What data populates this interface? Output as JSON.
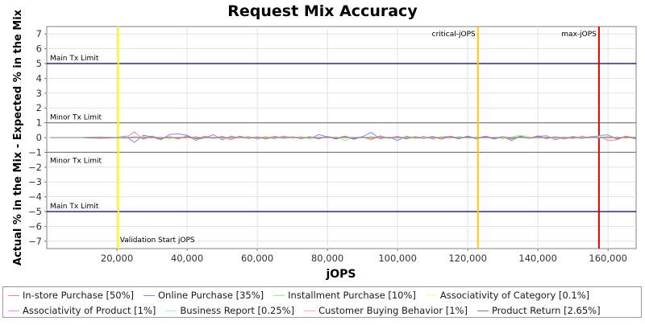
{
  "chart_data": {
    "type": "line",
    "title": "Request Mix Accuracy",
    "xlabel": "jOPS",
    "ylabel": "Actual % in the Mix - Expected % in the Mix",
    "xlim": [
      0,
      168000
    ],
    "ylim": [
      -7.5,
      7.5
    ],
    "x_ticks": [
      20000,
      40000,
      60000,
      80000,
      100000,
      120000,
      140000,
      160000
    ],
    "x_tick_labels": [
      "20,000",
      "40,000",
      "60,000",
      "80,000",
      "100,000",
      "120,000",
      "140,000",
      "160,000"
    ],
    "y_ticks": [
      -7,
      -6,
      -5,
      -4,
      -3,
      -2,
      -1,
      0,
      1,
      2,
      3,
      4,
      5,
      6,
      7
    ],
    "y_tick_labels": [
      "−7",
      "−6",
      "−5",
      "−4",
      "−3",
      "−2",
      "−1",
      "0",
      "1",
      "2",
      "3",
      "4",
      "5",
      "6",
      "7"
    ],
    "grid": true,
    "horizontal_lines": [
      {
        "label": "Main Tx Limit",
        "y": 5,
        "color": "#000066",
        "label_position": "above"
      },
      {
        "label": "Minor Tx Limit",
        "y": 1,
        "color": "#808080",
        "label_position": "above"
      },
      {
        "label": "Minor Tx Limit",
        "y": -1,
        "color": "#808080",
        "label_position": "below"
      },
      {
        "label": "Main Tx Limit",
        "y": -5,
        "color": "#000066",
        "label_position": "above"
      }
    ],
    "vertical_lines": [
      {
        "label": "Validation Start jOPS",
        "x": 20400,
        "color": "#ffff00",
        "label_position": "bottom-right"
      },
      {
        "label": "critical-jOPS",
        "x": 122900,
        "color": "#ffc800",
        "label_position": "top-left"
      },
      {
        "label": "max-jOPS",
        "x": 157400,
        "color": "#dd0000",
        "label_position": "top-left"
      }
    ],
    "x": [
      1000,
      5000,
      10000,
      15000,
      20000,
      22500,
      25000,
      27500,
      30000,
      32500,
      35000,
      37500,
      40000,
      42500,
      45000,
      47500,
      50000,
      52500,
      55000,
      57500,
      60000,
      62500,
      65000,
      67500,
      70000,
      72500,
      75000,
      77500,
      80000,
      82500,
      85000,
      87500,
      90000,
      92500,
      95000,
      97500,
      100000,
      102500,
      105000,
      107500,
      110000,
      112500,
      115000,
      117500,
      120000,
      122500,
      125000,
      127500,
      130000,
      132500,
      135000,
      137500,
      140000,
      142500,
      145000,
      147500,
      150000,
      152500,
      155000,
      157500,
      160000,
      162500,
      165000,
      168000
    ],
    "series": [
      {
        "name": "In-store Purchase [50%]",
        "color": "#ff8080",
        "values": [
          0,
          0,
          0,
          0.05,
          0,
          0,
          0.38,
          -0.12,
          0.1,
          -0.08,
          0.05,
          -0.1,
          0.12,
          -0.2,
          0.1,
          -0.05,
          0.08,
          -0.15,
          0.1,
          -0.06,
          0.05,
          -0.1,
          0.08,
          -0.05,
          0.04,
          -0.08,
          0.06,
          -0.1,
          0.08,
          -0.06,
          0.1,
          -0.08,
          0.05,
          -0.15,
          0.12,
          -0.05,
          0.08,
          -0.1,
          0.06,
          -0.05,
          0.08,
          -0.12,
          0.1,
          -0.06,
          0.05,
          -0.08,
          0.1,
          -0.05,
          0.06,
          -0.1,
          0.08,
          -0.05,
          0.12,
          -0.08,
          0.05,
          -0.1,
          0.08,
          -0.05,
          0.06,
          0.1,
          -0.2,
          -0.15,
          0.1,
          -0.05
        ]
      },
      {
        "name": "Online Purchase [35%]",
        "color": "#8080ff",
        "values": [
          0,
          0,
          0,
          -0.05,
          0,
          0.1,
          -0.32,
          0.15,
          0.05,
          -0.15,
          0.2,
          0.25,
          0.15,
          -0.1,
          -0.05,
          0.2,
          -0.15,
          0.1,
          -0.05,
          0.08,
          -0.1,
          0.05,
          -0.08,
          0.1,
          -0.05,
          0.06,
          -0.1,
          0.2,
          0.05,
          -0.1,
          0.08,
          -0.12,
          0.06,
          0.35,
          -0.1,
          0.05,
          -0.2,
          0.1,
          -0.05,
          0.08,
          -0.1,
          0.06,
          0.05,
          -0.08,
          0.1,
          -0.05,
          0.08,
          -0.1,
          0.05,
          -0.2,
          0.1,
          -0.05,
          0.08,
          0.12,
          -0.15,
          0.05,
          -0.08,
          0.1,
          -0.05,
          0.15,
          0.18,
          -0.1,
          0.05,
          -0.1
        ]
      },
      {
        "name": "Installment Purchase [10%]",
        "color": "#80ff80",
        "values": [
          0,
          0,
          0,
          0,
          0,
          0.05,
          -0.05,
          0.08,
          -0.05,
          0.05,
          -0.08,
          0.05,
          -0.05,
          0.08,
          -0.05,
          0.05,
          -0.08,
          0.05,
          -0.05,
          0.06,
          -0.05,
          0.08,
          -0.05,
          0.05,
          -0.06,
          0.05,
          -0.08,
          0.05,
          -0.05,
          0.06,
          -0.2,
          0.05,
          -0.05,
          0.08,
          -0.05,
          0.05,
          -0.06,
          0.05,
          -0.08,
          0.05,
          -0.05,
          0.06,
          -0.05,
          0.08,
          -0.05,
          0.05,
          -0.06,
          0.05,
          -0.08,
          0.05,
          0.15,
          0.05,
          -0.06,
          0.05,
          -0.08,
          0.05,
          -0.05,
          0.06,
          -0.05,
          0.08,
          -0.05,
          0.05,
          -0.06,
          0.05
        ]
      },
      {
        "name": "Associativity of Category [0.1%]",
        "color": "#ffff80",
        "values": [
          0,
          0,
          0,
          0,
          0,
          0,
          0,
          0,
          0,
          0,
          0,
          0,
          0,
          0,
          0,
          0,
          0,
          0,
          0,
          0,
          0,
          0,
          0,
          0,
          0,
          0,
          0,
          0,
          0,
          0,
          0,
          0,
          0,
          0,
          0,
          0,
          0,
          0,
          0,
          0,
          0,
          0,
          0,
          0,
          0,
          0,
          0,
          0,
          0,
          0,
          0,
          0,
          0,
          0,
          0,
          0,
          0,
          0,
          0,
          0,
          0,
          0,
          0,
          0
        ]
      },
      {
        "name": "Associativity of Product [1%]",
        "color": "#ff80ff",
        "values": [
          0,
          0,
          0,
          0.02,
          0,
          0.03,
          -0.03,
          0.04,
          -0.02,
          0.03,
          -0.04,
          0.02,
          -0.03,
          0.04,
          -0.02,
          0.03,
          -0.04,
          0.02,
          -0.03,
          0.03,
          -0.02,
          0.04,
          -0.03,
          0.02,
          -0.04,
          0.03,
          -0.02,
          0.04,
          -0.03,
          0.02,
          -0.04,
          0.03,
          -0.02,
          0.04,
          -0.03,
          0.02,
          -0.04,
          0.03,
          -0.02,
          0.04,
          -0.03,
          0.02,
          -0.04,
          0.03,
          -0.02,
          0.04,
          -0.03,
          0.02,
          -0.04,
          0.03,
          -0.02,
          0.04,
          -0.03,
          0.02,
          -0.04,
          0.03,
          -0.02,
          0.04,
          -0.03,
          0.02,
          -0.04,
          0.03,
          -0.02,
          0
        ]
      },
      {
        "name": "Business Report [0.25%]",
        "color": "#80ffff",
        "values": [
          0,
          0,
          0,
          0,
          0,
          0.01,
          -0.01,
          0.02,
          -0.01,
          0.01,
          -0.02,
          0.01,
          -0.01,
          0.02,
          -0.01,
          0.01,
          -0.02,
          0.01,
          -0.01,
          0.02,
          -0.01,
          0.01,
          -0.02,
          0.01,
          -0.01,
          0.02,
          -0.01,
          0.01,
          -0.02,
          0.01,
          -0.01,
          0.02,
          -0.01,
          0.01,
          -0.02,
          0.01,
          -0.01,
          0.02,
          -0.01,
          0.01,
          -0.02,
          0.01,
          -0.01,
          0.02,
          -0.01,
          0.01,
          -0.02,
          0.01,
          -0.01,
          0.02,
          -0.01,
          0.01,
          -0.02,
          0.01,
          -0.01,
          0.02,
          -0.01,
          0.01,
          -0.02,
          0.01,
          -0.01,
          0.02,
          -0.01,
          0
        ]
      },
      {
        "name": "Customer Buying Behavior [1%]",
        "color": "#ffb0a0",
        "values": [
          0,
          0,
          0,
          0.02,
          0,
          0.03,
          -0.04,
          0.03,
          -0.02,
          0.04,
          -0.03,
          0.02,
          -0.04,
          0.03,
          -0.02,
          0.04,
          -0.03,
          0.02,
          -0.04,
          0.03,
          -0.02,
          0.04,
          -0.03,
          0.02,
          -0.04,
          0.03,
          -0.02,
          0.04,
          -0.03,
          0.02,
          -0.04,
          0.03,
          -0.02,
          0.04,
          -0.03,
          0.02,
          -0.04,
          0.03,
          -0.02,
          0.04,
          -0.03,
          0.02,
          -0.04,
          0.03,
          -0.02,
          0.04,
          -0.03,
          0.02,
          -0.04,
          0.03,
          -0.02,
          0.04,
          -0.03,
          0.02,
          -0.04,
          0.03,
          -0.02,
          0.04,
          -0.03,
          0.02,
          -0.04,
          0.03,
          -0.02,
          0
        ]
      },
      {
        "name": "Product Return [2.65%]",
        "color": "#808080",
        "values": [
          0,
          0,
          0,
          -0.02,
          0,
          -0.03,
          0.05,
          -0.04,
          0.03,
          -0.05,
          0.04,
          -0.03,
          0.05,
          -0.04,
          0.03,
          -0.05,
          0.04,
          -0.03,
          0.05,
          -0.04,
          0.03,
          -0.05,
          0.04,
          -0.03,
          0.05,
          -0.04,
          0.03,
          -0.05,
          0.04,
          -0.03,
          0.05,
          -0.04,
          0.03,
          -0.05,
          0.04,
          -0.03,
          0.05,
          -0.04,
          0.03,
          -0.05,
          0.04,
          -0.03,
          0.05,
          -0.04,
          0.03,
          -0.05,
          0.04,
          -0.03,
          0.05,
          -0.04,
          0.03,
          -0.05,
          0.04,
          -0.03,
          0.05,
          -0.04,
          0.03,
          -0.05,
          0.04,
          -0.03,
          0.05,
          -0.04,
          0.03,
          0
        ]
      }
    ],
    "legend_placement": "bottom"
  }
}
